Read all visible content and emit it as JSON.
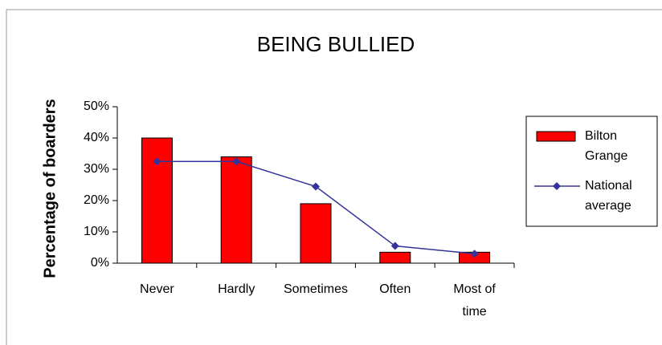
{
  "chart_data": {
    "type": "bar",
    "title": "BEING BULLIED",
    "y_label": "Percentage of boarders",
    "categories": [
      "Never",
      "Hardly",
      "Sometimes",
      "Often",
      "Most of time"
    ],
    "series": [
      {
        "name": "Bilton Grange",
        "type": "bar",
        "color": "#ff0000",
        "values": [
          40,
          34,
          19,
          3.5,
          3.5
        ]
      },
      {
        "name": "National average",
        "type": "line",
        "color": "#333399",
        "values": [
          32.5,
          32.5,
          24.5,
          5.5,
          3
        ]
      }
    ],
    "ylim": [
      0,
      50
    ],
    "yticks": [
      {
        "value": 0,
        "label": "0%"
      },
      {
        "value": 10,
        "label": "10%"
      },
      {
        "value": 20,
        "label": "20%"
      },
      {
        "value": 30,
        "label": "30%"
      },
      {
        "value": 40,
        "label": "40%"
      },
      {
        "value": 50,
        "label": "50%"
      }
    ],
    "legend": "right"
  }
}
